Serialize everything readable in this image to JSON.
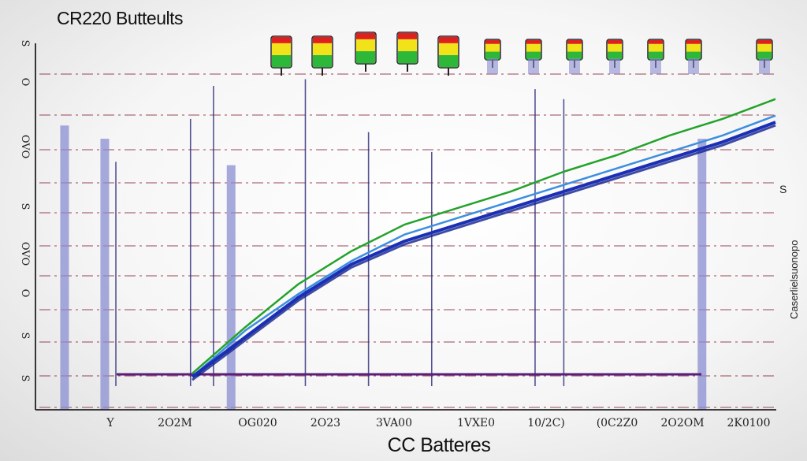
{
  "chart_data": {
    "type": "line",
    "title": "CR220 Butteults",
    "xlabel": "CC Batteres",
    "ylabel_right": "Caserlielsuonopo",
    "ylabel_right_top": "S",
    "x_tick_labels": [
      "Y",
      "2O2M",
      "OG020",
      "2O23",
      "3VA00",
      "1VXE0",
      "10/2C)",
      "(0C2Z0",
      "2O2OM",
      "2K0100"
    ],
    "y_tick_labels": [
      "S",
      "O",
      "OVO",
      "S",
      "OVO",
      "O",
      "S",
      "S"
    ],
    "grid": true,
    "colors": {
      "green": "#23a32b",
      "blue": "#1a2fb5",
      "light_blue": "#3c8fe0",
      "purple": "#5a1e7a",
      "bar": "#8a8ed0",
      "grid": "#8a3040",
      "vline": "#2a2a7a"
    },
    "series": [
      {
        "color": "green",
        "x": [
          0,
          1,
          2,
          3,
          4,
          5,
          6,
          7,
          8,
          9,
          10,
          11
        ],
        "y": [
          0.11,
          0.25,
          0.38,
          0.48,
          0.56,
          0.61,
          0.66,
          0.72,
          0.77,
          0.83,
          0.88,
          0.94
        ]
      },
      {
        "color": "light_blue",
        "x": [
          0,
          1,
          2,
          3,
          4,
          5,
          6,
          7,
          8,
          9,
          10,
          11
        ],
        "y": [
          0.1,
          0.24,
          0.35,
          0.45,
          0.53,
          0.58,
          0.63,
          0.68,
          0.73,
          0.78,
          0.83,
          0.89
        ]
      },
      {
        "color": "blue",
        "x": [
          0,
          1,
          2,
          3,
          4,
          5,
          6,
          7,
          8,
          9,
          10,
          11
        ],
        "y": [
          0.1,
          0.22,
          0.34,
          0.44,
          0.51,
          0.56,
          0.61,
          0.66,
          0.71,
          0.76,
          0.81,
          0.87
        ]
      }
    ],
    "baseline": {
      "color": "purple",
      "y": 0.1
    },
    "bars": [
      {
        "x": -1.1,
        "y": 0.86
      },
      {
        "x": -0.4,
        "y": 0.82
      },
      {
        "x": 1.8,
        "y": 0.74
      },
      {
        "x": 10.0,
        "y": 0.82
      }
    ],
    "vertical_lines": [
      {
        "x": -0.2,
        "y": 0.75
      },
      {
        "x": 1.1,
        "y": 0.88
      },
      {
        "x": 1.5,
        "y": 0.98
      },
      {
        "x": 3.1,
        "y": 1.0
      },
      {
        "x": 4.2,
        "y": 0.84
      },
      {
        "x": 5.3,
        "y": 0.78
      },
      {
        "x": 7.1,
        "y": 0.97
      },
      {
        "x": 7.6,
        "y": 0.94
      }
    ],
    "battery_levels": [
      0.55,
      0.7,
      0.85,
      0.8,
      0.7,
      0.4,
      0.45,
      0.45,
      0.5,
      0.55,
      0.5,
      0.45
    ]
  }
}
